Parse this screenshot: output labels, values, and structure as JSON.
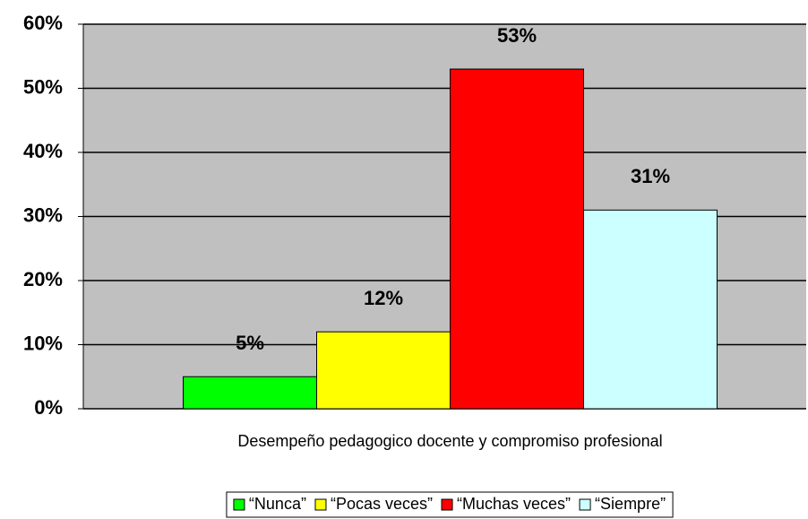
{
  "chart_data": {
    "type": "bar",
    "categories": [
      "Desempeño pedagogico docente y compromiso profesional"
    ],
    "series": [
      {
        "name": "“Nunca”",
        "color": "#00ff00",
        "values": [
          5
        ],
        "value_labels": [
          "5%"
        ]
      },
      {
        "name": "“Pocas veces”",
        "color": "#ffff00",
        "values": [
          12
        ],
        "value_labels": [
          "12%"
        ]
      },
      {
        "name": "“Muchas veces”",
        "color": "#ff0000",
        "values": [
          53
        ],
        "value_labels": [
          "53%"
        ]
      },
      {
        "name": "“Siempre”",
        "color": "#ccffff",
        "values": [
          31
        ],
        "value_labels": [
          "31%"
        ]
      }
    ],
    "ylim": [
      0,
      60
    ],
    "yticks": [
      {
        "value": 0,
        "label": "0%"
      },
      {
        "value": 10,
        "label": "10%"
      },
      {
        "value": 20,
        "label": "20%"
      },
      {
        "value": 30,
        "label": "30%"
      },
      {
        "value": 40,
        "label": "40%"
      },
      {
        "value": 50,
        "label": "50%"
      },
      {
        "value": 60,
        "label": "60%"
      }
    ],
    "grid": true,
    "legend": "bottom"
  }
}
